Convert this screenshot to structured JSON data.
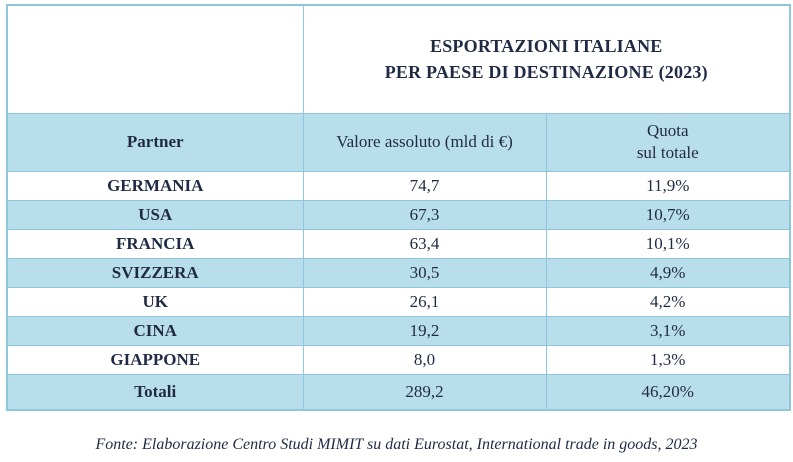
{
  "title": {
    "line1": "ESPORTAZIONI ITALIANE",
    "line2": "PER PAESE DI DESTINAZIONE (2023)"
  },
  "headers": {
    "partner": "Partner",
    "value": "Valore assoluto (mld di €)",
    "share_line1": "Quota",
    "share_line2": "sul totale"
  },
  "rows": [
    {
      "partner": "GERMANIA",
      "value": "74,7",
      "share": "11,9%"
    },
    {
      "partner": "USA",
      "value": "67,3",
      "share": "10,7%"
    },
    {
      "partner": "FRANCIA",
      "value": "63,4",
      "share": "10,1%"
    },
    {
      "partner": "SVIZZERA",
      "value": "30,5",
      "share": "4,9%"
    },
    {
      "partner": "UK",
      "value": "26,1",
      "share": "4,2%"
    },
    {
      "partner": "CINA",
      "value": "19,2",
      "share": "3,1%"
    },
    {
      "partner": "GIAPPONE",
      "value": "8,0",
      "share": "1,3%"
    }
  ],
  "total": {
    "partner": "Totali",
    "value": "289,2",
    "share": "46,20%"
  },
  "source": "Fonte: Elaborazione Centro Studi MIMIT su dati Eurostat, International trade in goods, 2023",
  "colors": {
    "border": "#8ec7dc",
    "band": "#b9deeb",
    "text": "#1f2a44"
  },
  "chart_data": {
    "type": "table",
    "title": "ESPORTAZIONI ITALIANE PER PAESE DI DESTINAZIONE (2023)",
    "columns": [
      "Partner",
      "Valore assoluto (mld di €)",
      "Quota sul totale"
    ],
    "categories": [
      "GERMANIA",
      "USA",
      "FRANCIA",
      "SVIZZERA",
      "UK",
      "CINA",
      "GIAPPONE"
    ],
    "series": [
      {
        "name": "Valore assoluto (mld di €)",
        "values": [
          74.7,
          67.3,
          63.4,
          30.5,
          26.1,
          19.2,
          8.0
        ]
      },
      {
        "name": "Quota sul totale",
        "values": [
          11.9,
          10.7,
          10.1,
          4.9,
          4.2,
          3.1,
          1.3
        ]
      }
    ],
    "totals": {
      "Valore assoluto (mld di €)": 289.2,
      "Quota sul totale": 46.2
    }
  }
}
